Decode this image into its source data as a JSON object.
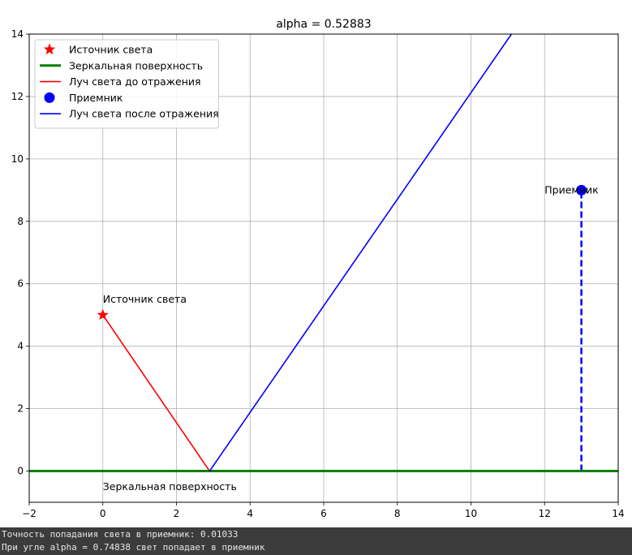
{
  "chart_data": {
    "type": "line",
    "title": "alpha = 0.52883",
    "xlabel": "",
    "ylabel": "",
    "xlim": [
      -2,
      14
    ],
    "ylim": [
      -1,
      14
    ],
    "x_ticks": [
      -2,
      0,
      2,
      4,
      6,
      8,
      10,
      12,
      14
    ],
    "y_ticks": [
      0,
      2,
      4,
      6,
      8,
      10,
      12,
      14
    ],
    "grid": true,
    "legend_position": "top-left",
    "series": [
      {
        "name": "Источник света",
        "kind": "marker-star",
        "color": "#ff0000",
        "points": [
          [
            0,
            5
          ]
        ]
      },
      {
        "name": "Зеркальная поверхность",
        "kind": "line",
        "color": "#008000",
        "points": [
          [
            -2,
            0
          ],
          [
            14,
            0
          ]
        ]
      },
      {
        "name": "Луч света до отражения",
        "kind": "line",
        "color": "#ff0000",
        "points": [
          [
            0,
            5
          ],
          [
            2.9,
            0
          ]
        ]
      },
      {
        "name": "Приемник",
        "kind": "marker-circle",
        "color": "#0000ff",
        "points": [
          [
            13,
            9
          ]
        ]
      },
      {
        "name": "Луч света после отражения",
        "kind": "line",
        "color": "#0000ff",
        "points": [
          [
            2.9,
            0
          ],
          [
            11.1,
            14
          ]
        ]
      }
    ],
    "extra_lines": [
      {
        "kind": "dashed",
        "color": "#0000ff",
        "points": [
          [
            13,
            0
          ],
          [
            13,
            9
          ]
        ]
      }
    ],
    "annotations": [
      {
        "text": "Источник света",
        "x": 0,
        "y": 5.5
      },
      {
        "text": "Зеркальная поверхность",
        "x": 0,
        "y": -0.5
      },
      {
        "text": "Приемник",
        "x": 12,
        "y": 9
      }
    ]
  },
  "console": {
    "lines": [
      "Точность попадания света в приемник: 0.01033",
      "При угле alpha = 0.74838 свет попадает в приемник"
    ]
  }
}
